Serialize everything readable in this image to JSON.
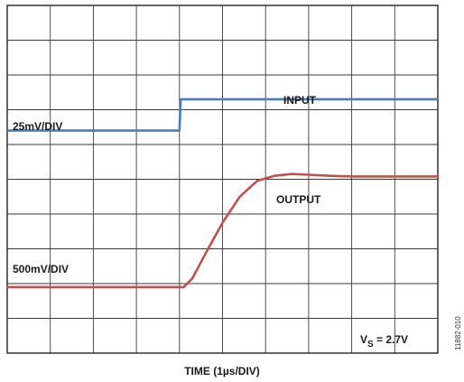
{
  "chart_data": {
    "type": "line",
    "title": "",
    "xlabel": "TIME (1µs/DIV)",
    "ylabel": "",
    "grid": true,
    "divisions": {
      "x": 10,
      "y": 10
    },
    "xlim": [
      0,
      10
    ],
    "ylim": [
      0,
      10
    ],
    "series": [
      {
        "name": "INPUT",
        "scale_label": "25mV/DIV",
        "color": "#4a7ebb",
        "x": [
          0,
          4.0,
          4.03,
          4.06,
          10
        ],
        "y": [
          6.4,
          6.4,
          7.3,
          7.3,
          7.3
        ]
      },
      {
        "name": "OUTPUT",
        "scale_label": "500mV/DIV",
        "color": "#c0504d",
        "x": [
          0,
          4.1,
          4.3,
          4.6,
          5.0,
          5.4,
          5.8,
          6.2,
          6.6,
          7.0,
          7.5,
          8.0,
          10
        ],
        "y": [
          1.9,
          1.9,
          2.15,
          2.85,
          3.75,
          4.5,
          4.95,
          5.1,
          5.15,
          5.13,
          5.1,
          5.08,
          5.08
        ]
      }
    ],
    "annotations": {
      "supply_main": "V",
      "supply_sub": "S",
      "supply_value": " = 2.7V",
      "figure_id": "11882-010"
    }
  }
}
